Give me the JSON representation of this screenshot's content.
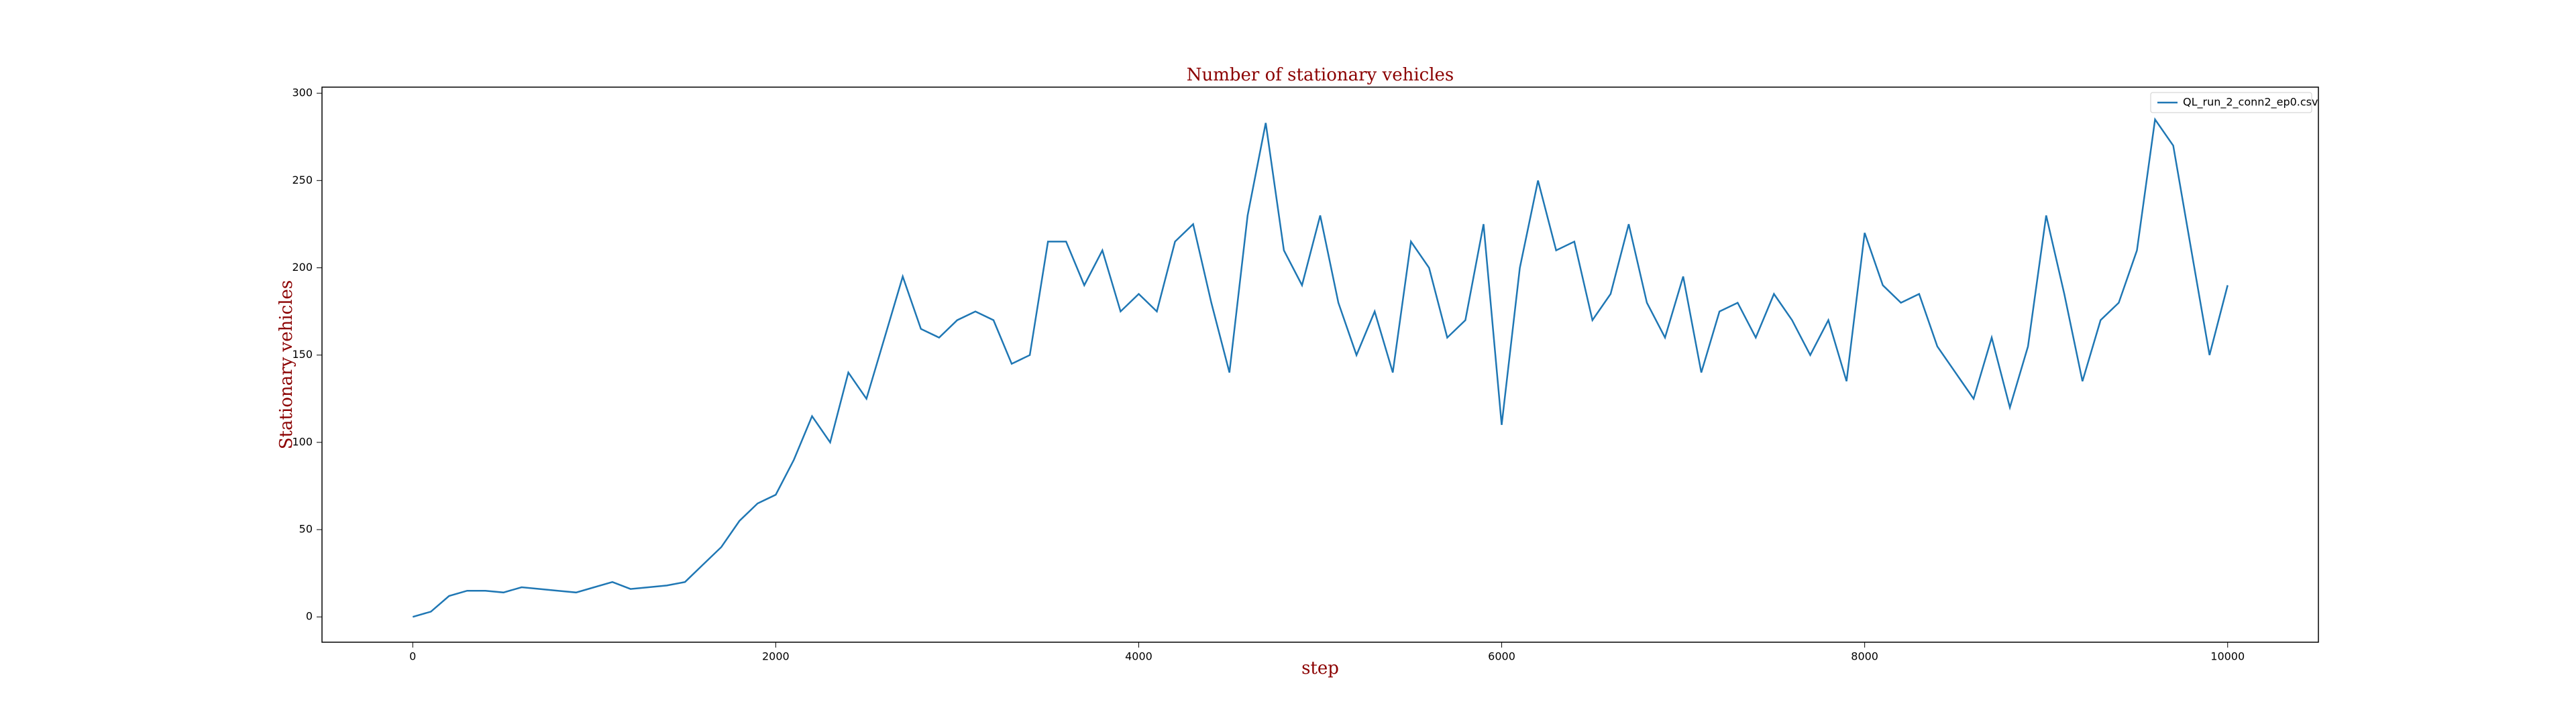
{
  "chart_data": {
    "type": "line",
    "title": "Number of stationary vehicles",
    "x_label": "step",
    "y_label": "Stationary vehicles",
    "x": [
      0,
      100,
      200,
      300,
      400,
      500,
      600,
      700,
      800,
      900,
      1000,
      1100,
      1200,
      1300,
      1400,
      1500,
      1600,
      1700,
      1800,
      1900,
      2000,
      2100,
      2200,
      2300,
      2400,
      2500,
      2600,
      2700,
      2800,
      2900,
      3000,
      3100,
      3200,
      3300,
      3400,
      3500,
      3600,
      3700,
      3800,
      3900,
      4000,
      4100,
      4200,
      4300,
      4400,
      4500,
      4600,
      4700,
      4800,
      4900,
      5000,
      5100,
      5200,
      5300,
      5400,
      5500,
      5600,
      5700,
      5800,
      5900,
      6000,
      6100,
      6200,
      6300,
      6400,
      6500,
      6600,
      6700,
      6800,
      6900,
      7000,
      7100,
      7200,
      7300,
      7400,
      7500,
      7600,
      7700,
      7800,
      7900,
      8000,
      8100,
      8200,
      8300,
      8400,
      8500,
      8600,
      8700,
      8800,
      8900,
      9000,
      9100,
      9200,
      9300,
      9400,
      9500,
      9600,
      9700,
      9800,
      9900,
      10000
    ],
    "series": [
      {
        "name": "QL_run_2_conn2_ep0.csv",
        "color": "#1f77b4",
        "values": [
          0,
          3,
          12,
          15,
          15,
          14,
          17,
          16,
          15,
          14,
          17,
          20,
          16,
          17,
          18,
          20,
          30,
          40,
          55,
          65,
          70,
          90,
          115,
          100,
          140,
          125,
          160,
          195,
          165,
          160,
          170,
          175,
          170,
          145,
          150,
          215,
          215,
          190,
          210,
          175,
          185,
          175,
          215,
          225,
          180,
          140,
          230,
          283,
          210,
          190,
          230,
          180,
          150,
          175,
          140,
          215,
          200,
          160,
          170,
          225,
          110,
          200,
          250,
          210,
          215,
          170,
          185,
          225,
          180,
          160,
          195,
          140,
          175,
          180,
          160,
          185,
          170,
          150,
          170,
          135,
          220,
          190,
          180,
          185,
          155,
          140,
          125,
          160,
          120,
          155,
          230,
          185,
          135,
          170,
          180,
          210,
          285,
          270,
          210,
          150,
          190
        ]
      }
    ],
    "xlim": [
      -500,
      10500
    ],
    "ylim": [
      -14.5,
      303.5
    ],
    "xticks": [
      0,
      2000,
      4000,
      6000,
      8000,
      10000
    ],
    "yticks": [
      0,
      50,
      100,
      150,
      200,
      250,
      300
    ],
    "legend": "upper right"
  }
}
